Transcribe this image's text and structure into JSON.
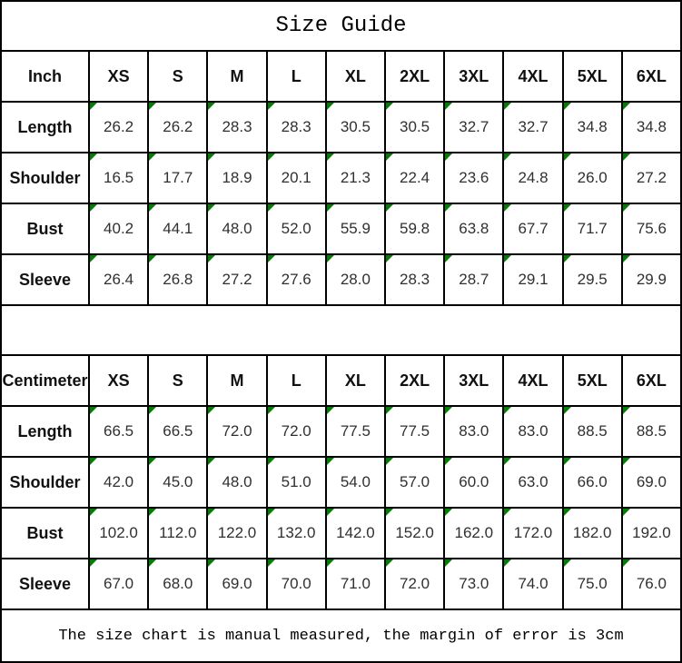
{
  "chart_data": {
    "type": "table",
    "title": "Size Guide",
    "note": "The size chart is manual measured, the margin of error is 3cm",
    "marker_color": "#008000",
    "border_color": "#000000",
    "tables": [
      {
        "unit_header": "Inch",
        "size_columns": [
          "XS",
          "S",
          "M",
          "L",
          "XL",
          "2XL",
          "3XL",
          "4XL",
          "5XL",
          "6XL"
        ],
        "rows": [
          {
            "label": "Length",
            "values": [
              "26.2",
              "26.2",
              "28.3",
              "28.3",
              "30.5",
              "30.5",
              "32.7",
              "32.7",
              "34.8",
              "34.8"
            ]
          },
          {
            "label": "Shoulder",
            "values": [
              "16.5",
              "17.7",
              "18.9",
              "20.1",
              "21.3",
              "22.4",
              "23.6",
              "24.8",
              "26.0",
              "27.2"
            ]
          },
          {
            "label": "Bust",
            "values": [
              "40.2",
              "44.1",
              "48.0",
              "52.0",
              "55.9",
              "59.8",
              "63.8",
              "67.7",
              "71.7",
              "75.6"
            ]
          },
          {
            "label": "Sleeve",
            "values": [
              "26.4",
              "26.8",
              "27.2",
              "27.6",
              "28.0",
              "28.3",
              "28.7",
              "29.1",
              "29.5",
              "29.9"
            ]
          }
        ]
      },
      {
        "unit_header": "Centimeter",
        "size_columns": [
          "XS",
          "S",
          "M",
          "L",
          "XL",
          "2XL",
          "3XL",
          "4XL",
          "5XL",
          "6XL"
        ],
        "rows": [
          {
            "label": "Length",
            "values": [
              "66.5",
              "66.5",
              "72.0",
              "72.0",
              "77.5",
              "77.5",
              "83.0",
              "83.0",
              "88.5",
              "88.5"
            ]
          },
          {
            "label": "Shoulder",
            "values": [
              "42.0",
              "45.0",
              "48.0",
              "51.0",
              "54.0",
              "57.0",
              "60.0",
              "63.0",
              "66.0",
              "69.0"
            ]
          },
          {
            "label": "Bust",
            "values": [
              "102.0",
              "112.0",
              "122.0",
              "132.0",
              "142.0",
              "152.0",
              "162.0",
              "172.0",
              "182.0",
              "192.0"
            ]
          },
          {
            "label": "Sleeve",
            "values": [
              "67.0",
              "68.0",
              "69.0",
              "70.0",
              "71.0",
              "72.0",
              "73.0",
              "74.0",
              "75.0",
              "76.0"
            ]
          }
        ]
      }
    ]
  }
}
